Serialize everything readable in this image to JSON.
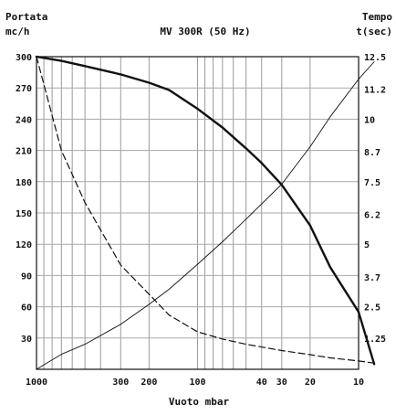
{
  "chart_data": {
    "type": "line",
    "title": "MV 300R (50 Hz)",
    "left_axis_label_line1": "Portata",
    "left_axis_label_line2": "mc/h",
    "right_axis_label_line1": "Tempo",
    "right_axis_label_line2": "t(sec)",
    "xlabel": "Vuoto mbar",
    "x_scale": "log",
    "x_reversed": true,
    "xlim": [
      1000,
      10
    ],
    "x_ticks": [
      1000,
      300,
      200,
      100,
      40,
      30,
      20,
      10
    ],
    "x_tick_labels": [
      "1000",
      "300",
      "200",
      "100",
      "40",
      "30",
      "20",
      "10"
    ],
    "x_gridlines": [
      1000,
      900,
      800,
      700,
      600,
      500,
      400,
      300,
      200,
      100,
      90,
      80,
      70,
      60,
      50,
      40,
      30,
      20,
      10
    ],
    "ylim_left": [
      0,
      300
    ],
    "y_ticks_left": [
      30,
      60,
      90,
      120,
      150,
      180,
      210,
      240,
      270,
      300
    ],
    "y_tick_labels_left": [
      "30",
      "60",
      "90",
      "120",
      "150",
      "180",
      "210",
      "240",
      "270",
      "300"
    ],
    "ylim_right": [
      0,
      12.5
    ],
    "y_ticks_right": [
      1.25,
      2.5,
      3.7,
      5,
      6.2,
      7.5,
      8.7,
      10,
      11.2,
      12.5
    ],
    "y_tick_labels_right": [
      "1.25",
      "2.5",
      "3.7",
      "5",
      "6.2",
      "7.5",
      "8.7",
      "10",
      "11.2",
      "12.5"
    ],
    "series": [
      {
        "axis": "left",
        "style": "solid-thick",
        "x": [
          1000,
          700,
          500,
          300,
          200,
          150,
          100,
          70,
          50,
          40,
          30,
          20,
          15,
          10,
          8
        ],
        "values": [
          300,
          296,
          291,
          283,
          275,
          268,
          250,
          232,
          212,
          198,
          177,
          138,
          98,
          55,
          5
        ]
      },
      {
        "axis": "left",
        "style": "dashed",
        "x": [
          1000,
          700,
          500,
          300,
          200,
          150,
          100,
          70,
          50,
          30,
          20,
          15,
          10,
          8
        ],
        "values": [
          300,
          210,
          160,
          100,
          72,
          52,
          36,
          29,
          24,
          18,
          14,
          11,
          8,
          6
        ]
      },
      {
        "axis": "right",
        "style": "solid-thin",
        "x": [
          1000,
          700,
          500,
          300,
          200,
          150,
          100,
          70,
          50,
          30,
          20,
          15,
          10,
          8
        ],
        "values": [
          0,
          0.6,
          1.0,
          1.8,
          2.6,
          3.2,
          4.2,
          5.1,
          6.0,
          7.4,
          8.9,
          10.1,
          11.6,
          12.3
        ]
      }
    ],
    "grid": true
  }
}
